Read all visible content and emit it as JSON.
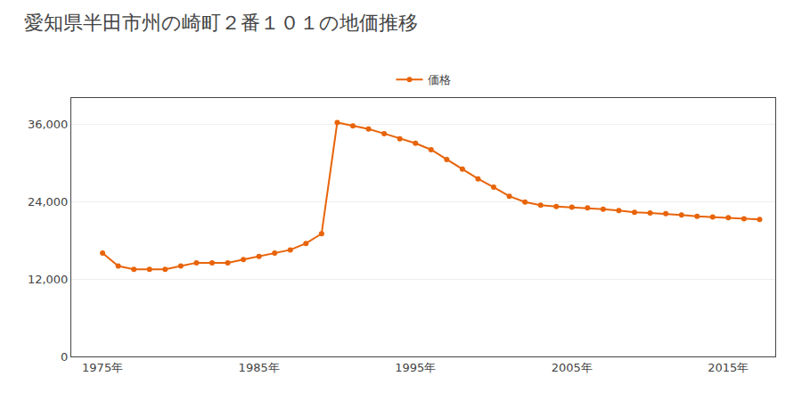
{
  "chart_data": {
    "type": "line",
    "title": "愛知県半田市州の崎町２番１０１の地価推移",
    "x": [
      1975,
      1976,
      1977,
      1978,
      1979,
      1980,
      1981,
      1982,
      1983,
      1984,
      1985,
      1986,
      1987,
      1988,
      1989,
      1990,
      1991,
      1992,
      1993,
      1994,
      1995,
      1996,
      1997,
      1998,
      1999,
      2000,
      2001,
      2002,
      2003,
      2004,
      2005,
      2006,
      2007,
      2008,
      2009,
      2010,
      2011,
      2012,
      2013,
      2014,
      2015,
      2016,
      2017
    ],
    "series": [
      {
        "name": "価格",
        "color": "#E8640A",
        "marker": "circle",
        "values": [
          16000,
          14000,
          13500,
          13500,
          13500,
          14000,
          14500,
          14500,
          14500,
          15000,
          15500,
          16000,
          16500,
          17500,
          19000,
          36200,
          35700,
          35200,
          34500,
          33700,
          33000,
          32000,
          30500,
          29000,
          27500,
          26200,
          24800,
          23900,
          23400,
          23200,
          23100,
          23000,
          22800,
          22600,
          22300,
          22200,
          22100,
          21900,
          21700,
          21600,
          21500,
          21300,
          21200
        ]
      }
    ],
    "xlim": [
      1973,
      2018
    ],
    "xticks": [
      {
        "value": 1975,
        "label": "1975年"
      },
      {
        "value": 1985,
        "label": "1985年"
      },
      {
        "value": 1995,
        "label": "1995年"
      },
      {
        "value": 2005,
        "label": "2005年"
      },
      {
        "value": 2015,
        "label": "2015年"
      }
    ],
    "ylim": [
      0,
      40000
    ],
    "yticks": [
      0,
      {
        "value": 12000,
        "label": "12,000"
      },
      {
        "value": 24000,
        "label": "24,000"
      },
      {
        "value": 36000,
        "label": "36,000"
      }
    ],
    "grid": "y",
    "legend": "top"
  }
}
